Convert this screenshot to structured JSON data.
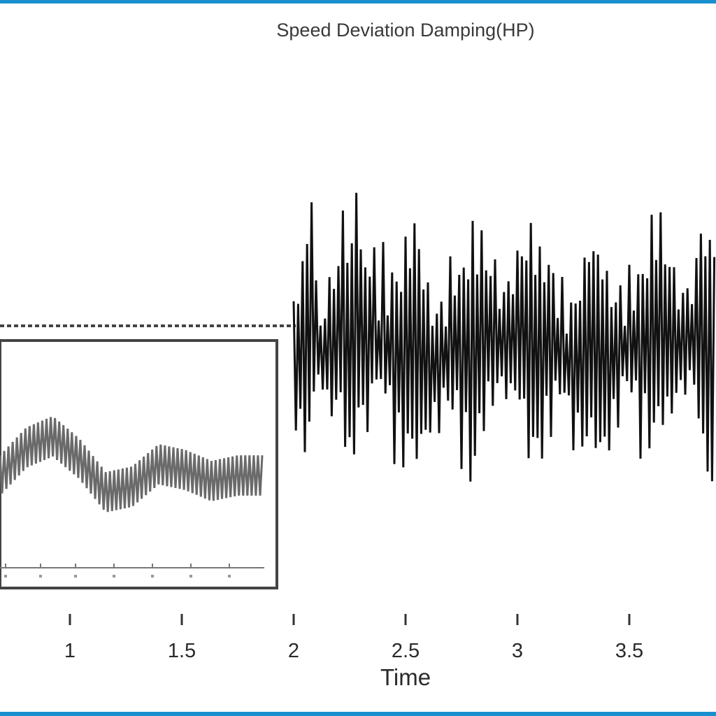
{
  "accent_color": "#1a8fd0",
  "chart_data": {
    "type": "line",
    "title": "Speed Deviation Damping(HP)",
    "xlabel": "Time",
    "ylabel": "",
    "x_ticks": [
      "1",
      "1.5",
      "2",
      "2.5",
      "3",
      "3.5"
    ],
    "x_tick_values": [
      1,
      1.5,
      2,
      2.5,
      3,
      3.5
    ],
    "xlim": [
      0.7,
      3.82
    ],
    "ylim": [
      -1.1,
      1.1
    ],
    "grid": false,
    "series": [
      {
        "description_color": "#111111",
        "x": [
          2.0,
          2.03,
          2.04,
          2.05,
          2.06,
          2.07,
          2.08,
          2.1,
          2.13,
          2.16,
          2.2,
          2.23,
          2.25,
          2.28,
          2.3,
          2.33,
          2.36,
          2.4,
          2.45,
          2.5,
          2.55,
          2.6,
          2.65,
          2.7,
          2.75,
          2.8,
          2.85,
          2.9,
          2.95,
          3.0,
          3.05,
          3.1,
          3.15,
          3.2,
          3.25,
          3.3,
          3.35,
          3.4,
          3.45,
          3.5,
          3.55,
          3.6,
          3.65,
          3.7,
          3.75,
          3.8
        ],
        "y": [
          0.0,
          0.0,
          -0.3,
          0.55,
          -0.7,
          0.6,
          -0.95,
          0.4,
          -0.2,
          0.5,
          -0.35,
          0.7,
          -0.5,
          0.85,
          -0.4,
          0.75,
          -0.55,
          0.6,
          -0.6,
          0.55,
          -0.65,
          0.5,
          -0.55,
          0.55,
          -0.45,
          0.6,
          -0.5,
          0.55,
          -0.6,
          0.5,
          -0.55,
          0.5,
          -0.5,
          0.45,
          -0.55,
          0.5,
          -0.45,
          0.5,
          -0.5,
          0.45,
          -0.5,
          0.45,
          -0.45,
          0.45,
          -0.5,
          0.5
        ]
      }
    ],
    "inset": {
      "type": "line",
      "description_color": "#6a6a6a",
      "x": [
        0,
        1,
        2,
        3,
        4,
        5,
        6,
        7,
        8,
        9,
        10
      ],
      "y": [
        0.0,
        0.25,
        0.35,
        0.15,
        -0.15,
        -0.1,
        0.1,
        0.05,
        -0.05,
        0.0,
        0.0
      ]
    }
  }
}
